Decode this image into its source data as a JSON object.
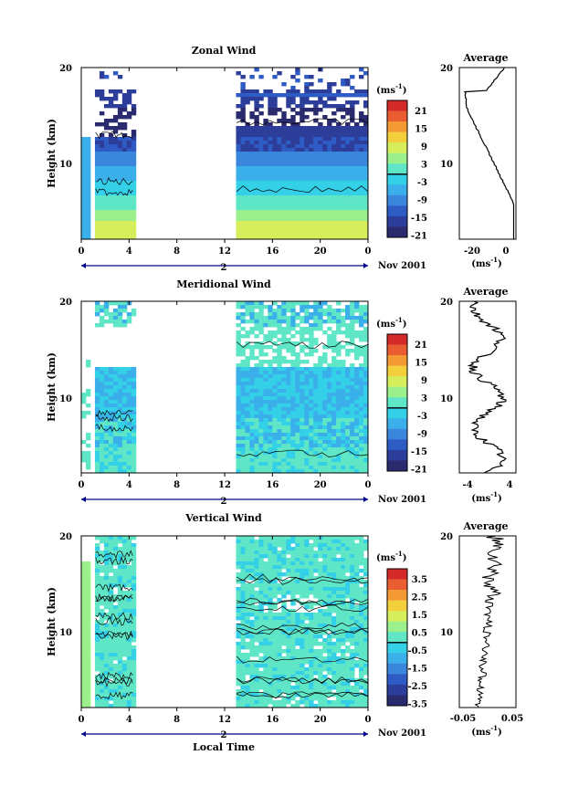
{
  "chart_data": [
    {
      "type": "heatmap",
      "title": "Zonal Wind",
      "ylabel": "Height (km)",
      "y_ticks": [
        "20",
        "10"
      ],
      "x_ticks": [
        "0",
        "4",
        "8",
        "12",
        "16",
        "20",
        "0"
      ],
      "date_marker": "2",
      "date_label": "Nov 2001",
      "colorbar": {
        "unit_base": "(ms",
        "unit_exp": "-1",
        "unit_close": ")",
        "ticks": [
          "21",
          "15",
          "9",
          "3",
          "-3",
          "-9",
          "-15",
          "-21"
        ]
      },
      "average": {
        "title": "Average",
        "x_ticks": [
          "-20",
          "0"
        ],
        "unit_base": "(ms",
        "unit_exp": "-1",
        "unit_close": ")",
        "y_ticks": [
          "20",
          "10"
        ]
      }
    },
    {
      "type": "heatmap",
      "title": "Meridional Wind",
      "ylabel": "Height (km)",
      "y_ticks": [
        "20",
        "10"
      ],
      "x_ticks": [
        "0",
        "4",
        "8",
        "12",
        "16",
        "20",
        "0"
      ],
      "date_marker": "2",
      "date_label": "Nov 2001",
      "colorbar": {
        "unit_base": "(ms",
        "unit_exp": "-1",
        "unit_close": ")",
        "ticks": [
          "21",
          "15",
          "9",
          "3",
          "-3",
          "-9",
          "-15",
          "-21"
        ]
      },
      "average": {
        "title": "Average",
        "x_ticks": [
          "-4",
          "4"
        ],
        "unit_base": "(ms",
        "unit_exp": "-1",
        "unit_close": ")",
        "y_ticks": [
          "20",
          "10"
        ]
      }
    },
    {
      "type": "heatmap",
      "title": "Vertical Wind",
      "ylabel": "Height (km)",
      "xlabel": "Local Time",
      "y_ticks": [
        "20",
        "10"
      ],
      "x_ticks": [
        "0",
        "4",
        "8",
        "12",
        "16",
        "20",
        "0"
      ],
      "date_marker": "2",
      "date_label": "Nov 2001",
      "colorbar": {
        "unit_base": "(ms",
        "unit_exp": "-1",
        "unit_close": ")",
        "ticks": [
          "3.5",
          "2.5",
          "1.5",
          "0.5",
          "-0.5",
          "-1.5",
          "-2.5",
          "-3.5"
        ]
      },
      "average": {
        "title": "Average",
        "x_ticks": [
          "-0.05",
          "0.05"
        ],
        "unit_base": "(ms",
        "unit_exp": "-1",
        "unit_close": ")",
        "y_ticks": [
          "20",
          "10"
        ]
      }
    }
  ],
  "colors": {
    "scale": [
      "#2a2a6e",
      "#2d3d9a",
      "#2f5bc4",
      "#3a86dc",
      "#3aafea",
      "#34d0e8",
      "#5fe6c6",
      "#9cf08c",
      "#d6ee5c",
      "#f4cf3c",
      "#f49a34",
      "#ea5d30",
      "#d42a28"
    ],
    "zero_line": "#000000"
  }
}
